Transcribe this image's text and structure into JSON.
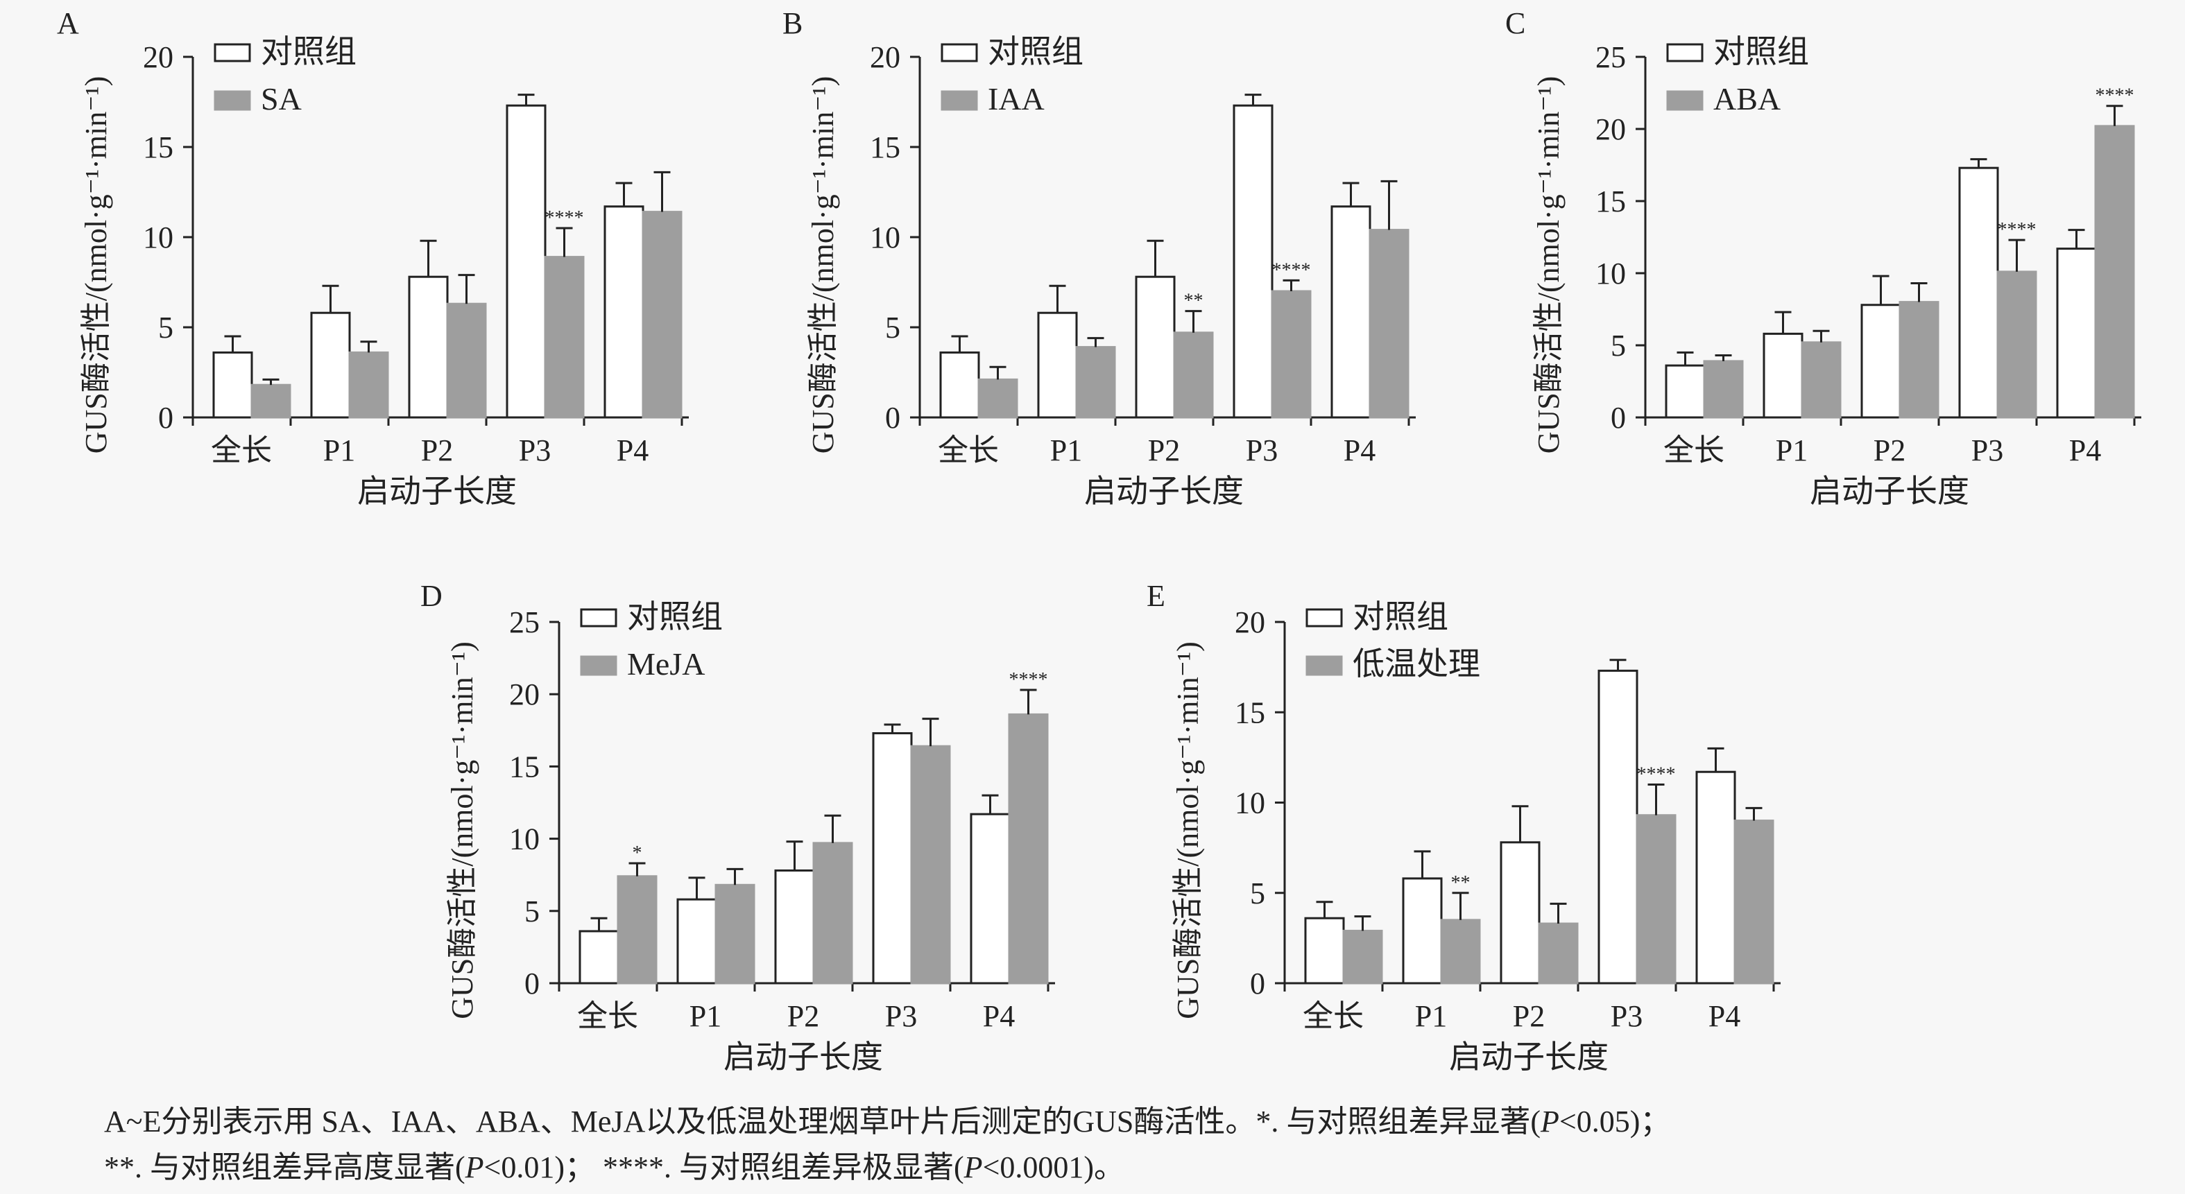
{
  "legend_control": "对照组",
  "x_title": "启动子长度",
  "y_title": "GUS酶活性/(nmol·g⁻¹·min⁻¹)",
  "colors": {
    "control_fill": "#ffffff",
    "treatment_fill": "#9e9e9e",
    "stroke": "#222222",
    "background": "#f7f7f7"
  },
  "caption": {
    "line1": "A~E分别表示用 SA、IAA、ABA、MeJA以及低温处理烟草叶片后测定的GUS酶活性。*. 与对照组差异显著(",
    "p": "P",
    "line1_end": "<0.05)；",
    "line2a": "**. 与对照组差异高度显著(",
    "line2b": "<0.01)；  ****. 与对照组差异极显著(",
    "line2c": "<0.0001)。"
  },
  "chart_data": [
    {
      "panel": "A",
      "type": "bar",
      "treatment": "SA",
      "categories": [
        "全长",
        "P1",
        "P2",
        "P3",
        "P4"
      ],
      "ylim": [
        0,
        20
      ],
      "yticks": [
        0,
        5,
        10,
        15,
        20
      ],
      "series": [
        {
          "name": "对照组",
          "values": [
            3.6,
            5.8,
            7.8,
            17.3,
            11.7
          ],
          "errors": [
            0.9,
            1.5,
            2.0,
            0.6,
            1.3
          ]
        },
        {
          "name": "SA",
          "values": [
            1.8,
            3.6,
            6.3,
            8.9,
            11.4
          ],
          "errors": [
            0.3,
            0.6,
            1.6,
            1.6,
            2.2
          ]
        }
      ],
      "annotations": [
        {
          "category": "P3",
          "series": 1,
          "text": "****"
        }
      ]
    },
    {
      "panel": "B",
      "type": "bar",
      "treatment": "IAA",
      "categories": [
        "全长",
        "P1",
        "P2",
        "P3",
        "P4"
      ],
      "ylim": [
        0,
        20
      ],
      "yticks": [
        0,
        5,
        10,
        15,
        20
      ],
      "series": [
        {
          "name": "对照组",
          "values": [
            3.6,
            5.8,
            7.8,
            17.3,
            11.7
          ],
          "errors": [
            0.9,
            1.5,
            2.0,
            0.6,
            1.3
          ]
        },
        {
          "name": "IAA",
          "values": [
            2.1,
            3.9,
            4.7,
            7.0,
            10.4
          ],
          "errors": [
            0.7,
            0.5,
            1.2,
            0.6,
            2.7
          ]
        }
      ],
      "annotations": [
        {
          "category": "P2",
          "series": 1,
          "text": "**"
        },
        {
          "category": "P3",
          "series": 1,
          "text": "****"
        }
      ]
    },
    {
      "panel": "C",
      "type": "bar",
      "treatment": "ABA",
      "categories": [
        "全长",
        "P1",
        "P2",
        "P3",
        "P4"
      ],
      "ylim": [
        0,
        25
      ],
      "yticks": [
        0,
        5,
        10,
        15,
        20,
        25
      ],
      "series": [
        {
          "name": "对照组",
          "values": [
            3.6,
            5.8,
            7.8,
            17.3,
            11.7
          ],
          "errors": [
            0.9,
            1.5,
            2.0,
            0.6,
            1.3
          ]
        },
        {
          "name": "ABA",
          "values": [
            3.9,
            5.2,
            8.0,
            10.1,
            20.2
          ],
          "errors": [
            0.4,
            0.8,
            1.3,
            2.2,
            1.4
          ]
        }
      ],
      "annotations": [
        {
          "category": "P3",
          "series": 1,
          "text": "****"
        },
        {
          "category": "P4",
          "series": 1,
          "text": "****"
        }
      ]
    },
    {
      "panel": "D",
      "type": "bar",
      "treatment": "MeJA",
      "categories": [
        "全长",
        "P1",
        "P2",
        "P3",
        "P4"
      ],
      "ylim": [
        0,
        25
      ],
      "yticks": [
        0,
        5,
        10,
        15,
        20,
        25
      ],
      "series": [
        {
          "name": "对照组",
          "values": [
            3.6,
            5.8,
            7.8,
            17.3,
            11.7
          ],
          "errors": [
            0.9,
            1.5,
            2.0,
            0.6,
            1.3
          ]
        },
        {
          "name": "MeJA",
          "values": [
            7.4,
            6.8,
            9.7,
            16.4,
            18.6
          ],
          "errors": [
            0.9,
            1.1,
            1.9,
            1.9,
            1.7
          ]
        }
      ],
      "annotations": [
        {
          "category": "全长",
          "series": 1,
          "text": "*"
        },
        {
          "category": "P4",
          "series": 1,
          "text": "****"
        }
      ]
    },
    {
      "panel": "E",
      "type": "bar",
      "treatment": "低温处理",
      "categories": [
        "全长",
        "P1",
        "P2",
        "P3",
        "P4"
      ],
      "ylim": [
        0,
        20
      ],
      "yticks": [
        0,
        5,
        10,
        15,
        20
      ],
      "series": [
        {
          "name": "对照组",
          "values": [
            3.6,
            5.8,
            7.8,
            17.3,
            11.7
          ],
          "errors": [
            0.9,
            1.5,
            2.0,
            0.6,
            1.3
          ]
        },
        {
          "name": "低温处理",
          "values": [
            2.9,
            3.5,
            3.3,
            9.3,
            9.0
          ],
          "errors": [
            0.8,
            1.5,
            1.1,
            1.7,
            0.7
          ]
        }
      ],
      "annotations": [
        {
          "category": "P1",
          "series": 1,
          "text": "**"
        },
        {
          "category": "P3",
          "series": 1,
          "text": "****"
        }
      ]
    }
  ]
}
